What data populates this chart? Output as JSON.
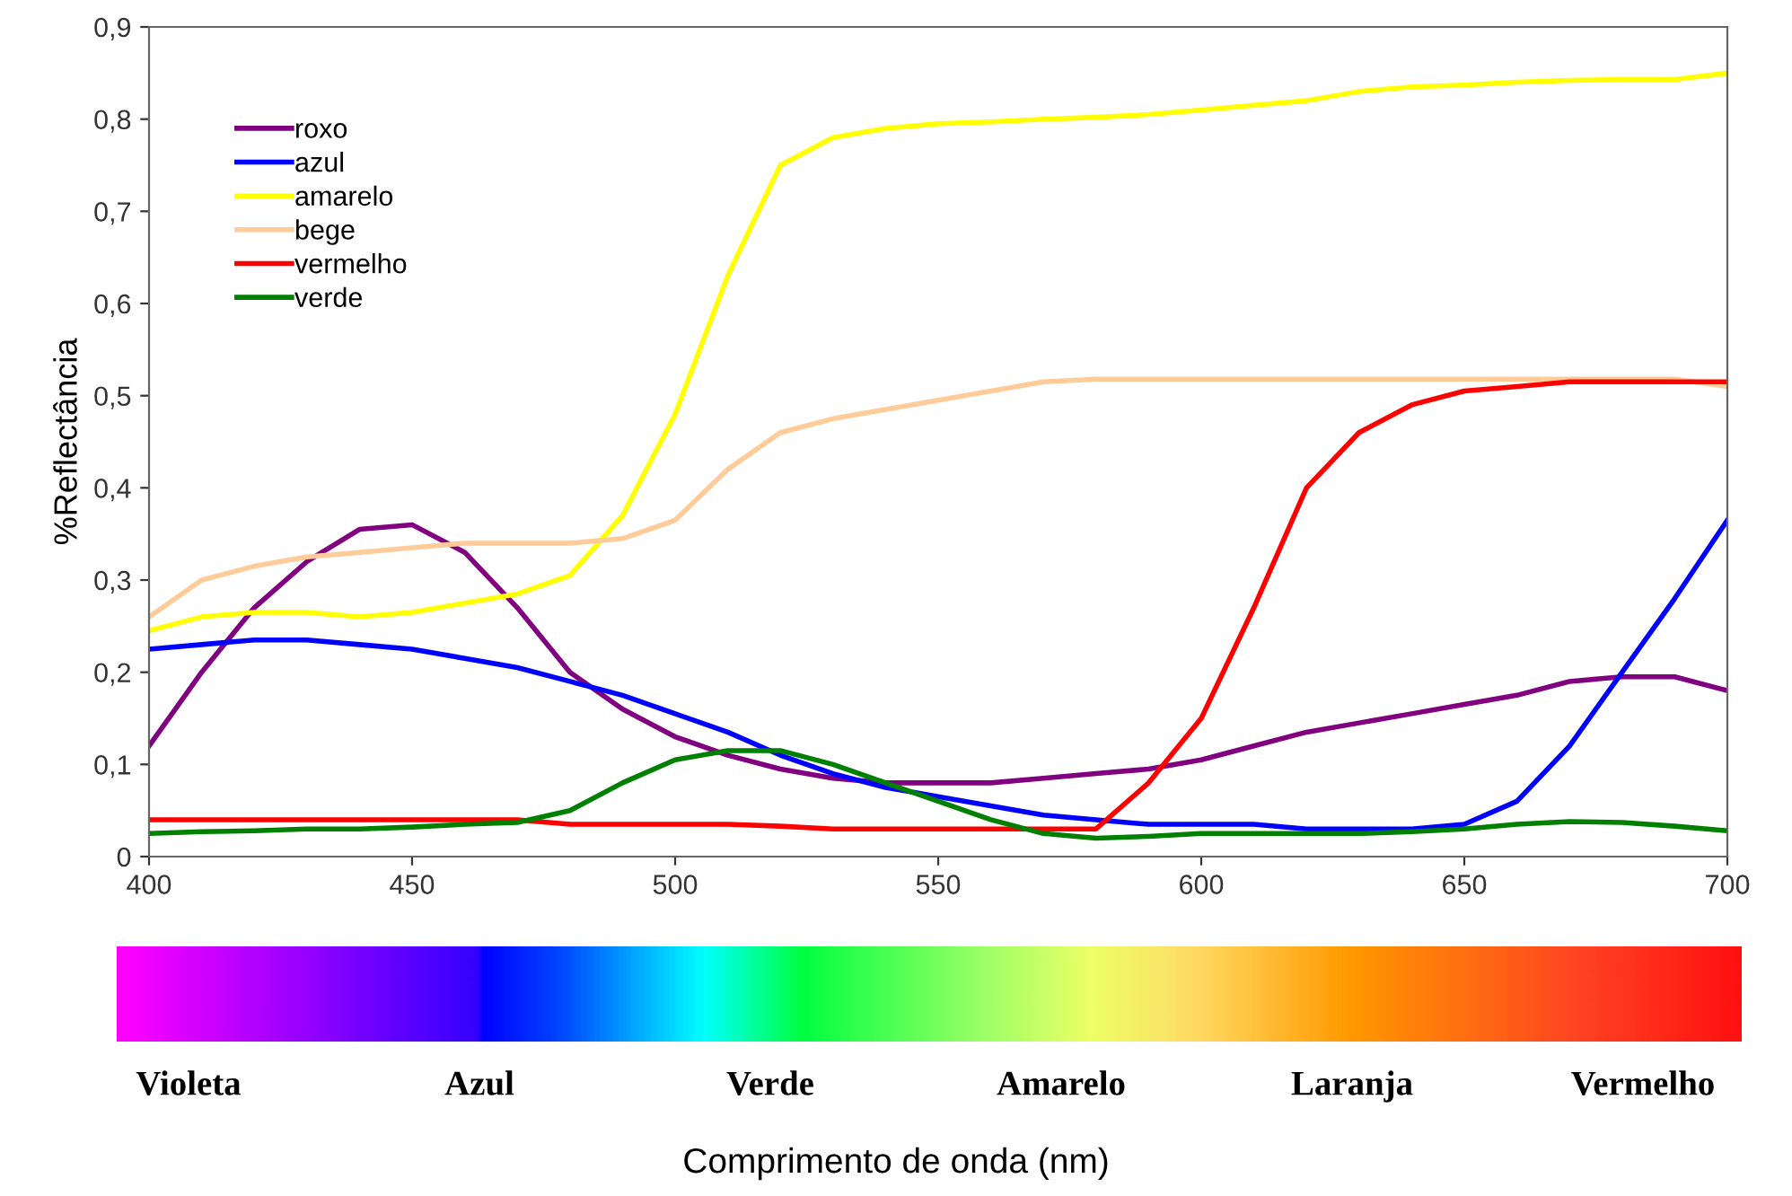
{
  "chart_data": {
    "type": "line",
    "ylabel": "%Reflectância",
    "x": [
      400,
      410,
      420,
      430,
      440,
      450,
      460,
      470,
      480,
      490,
      500,
      510,
      520,
      530,
      540,
      550,
      560,
      570,
      580,
      590,
      600,
      610,
      620,
      630,
      640,
      650,
      660,
      670,
      680,
      690,
      700
    ],
    "series": [
      {
        "name": "roxo",
        "color": "#800080",
        "values": [
          0.12,
          0.2,
          0.27,
          0.32,
          0.355,
          0.36,
          0.33,
          0.27,
          0.2,
          0.16,
          0.13,
          0.11,
          0.095,
          0.085,
          0.08,
          0.08,
          0.08,
          0.085,
          0.09,
          0.095,
          0.105,
          0.12,
          0.135,
          0.145,
          0.155,
          0.165,
          0.175,
          0.19,
          0.195,
          0.195,
          0.18
        ]
      },
      {
        "name": "azul",
        "color": "#0000ff",
        "values": [
          0.225,
          0.23,
          0.235,
          0.235,
          0.23,
          0.225,
          0.215,
          0.205,
          0.19,
          0.175,
          0.155,
          0.135,
          0.11,
          0.09,
          0.075,
          0.065,
          0.055,
          0.045,
          0.04,
          0.035,
          0.035,
          0.035,
          0.03,
          0.03,
          0.03,
          0.035,
          0.06,
          0.12,
          0.2,
          0.28,
          0.365
        ]
      },
      {
        "name": "amarelo",
        "color": "#ffff00",
        "values": [
          0.245,
          0.26,
          0.265,
          0.265,
          0.26,
          0.265,
          0.275,
          0.285,
          0.305,
          0.37,
          0.48,
          0.63,
          0.75,
          0.78,
          0.79,
          0.795,
          0.797,
          0.8,
          0.802,
          0.805,
          0.81,
          0.815,
          0.82,
          0.83,
          0.835,
          0.837,
          0.84,
          0.842,
          0.843,
          0.843,
          0.85
        ]
      },
      {
        "name": "bege",
        "color": "#ffcc99",
        "values": [
          0.26,
          0.3,
          0.315,
          0.325,
          0.33,
          0.335,
          0.34,
          0.34,
          0.34,
          0.345,
          0.365,
          0.42,
          0.46,
          0.475,
          0.485,
          0.495,
          0.505,
          0.515,
          0.518,
          0.518,
          0.518,
          0.518,
          0.518,
          0.518,
          0.518,
          0.518,
          0.518,
          0.518,
          0.518,
          0.518,
          0.51
        ]
      },
      {
        "name": "vermelho",
        "color": "#ff0000",
        "values": [
          0.04,
          0.04,
          0.04,
          0.04,
          0.04,
          0.04,
          0.04,
          0.04,
          0.035,
          0.035,
          0.035,
          0.035,
          0.033,
          0.03,
          0.03,
          0.03,
          0.03,
          0.03,
          0.03,
          0.08,
          0.15,
          0.27,
          0.4,
          0.46,
          0.49,
          0.505,
          0.51,
          0.515,
          0.515,
          0.515,
          0.515
        ]
      },
      {
        "name": "verde",
        "color": "#008000",
        "values": [
          0.025,
          0.027,
          0.028,
          0.03,
          0.03,
          0.032,
          0.035,
          0.037,
          0.05,
          0.08,
          0.105,
          0.115,
          0.115,
          0.1,
          0.08,
          0.06,
          0.04,
          0.025,
          0.02,
          0.022,
          0.025,
          0.025,
          0.025,
          0.025,
          0.027,
          0.03,
          0.035,
          0.038,
          0.037,
          0.033,
          0.028
        ]
      }
    ],
    "xlim": [
      400,
      700
    ],
    "xticks": [
      400,
      450,
      500,
      550,
      600,
      650,
      700
    ],
    "ylim": [
      0,
      0.9
    ],
    "yticks": [
      {
        "value": 0,
        "label": "0"
      },
      {
        "value": 0.1,
        "label": "0,1"
      },
      {
        "value": 0.2,
        "label": "0,2"
      },
      {
        "value": 0.3,
        "label": "0,3"
      },
      {
        "value": 0.4,
        "label": "0,4"
      },
      {
        "value": 0.5,
        "label": "0,5"
      },
      {
        "value": 0.6,
        "label": "0,6"
      },
      {
        "value": 0.7,
        "label": "0,7"
      },
      {
        "value": 0.8,
        "label": "0,8"
      },
      {
        "value": 0.9,
        "label": "0,9"
      }
    ],
    "legend": "top left",
    "grid": false,
    "annotations": [
      "Violeta",
      "Azul",
      "Verde",
      "Amarelo",
      "Laranja",
      "Vermelho",
      "Comprimento de onda (nm)"
    ]
  }
}
